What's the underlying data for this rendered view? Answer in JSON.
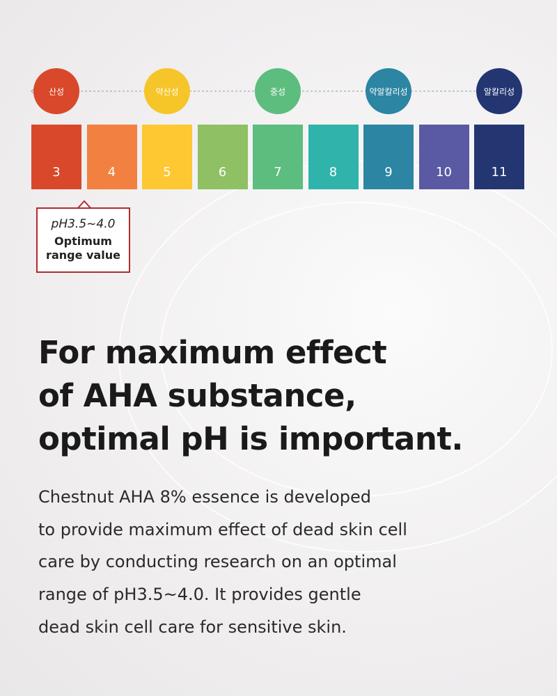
{
  "scale": {
    "zones": [
      {
        "label": "산성",
        "color": "#d9482a"
      },
      {
        "label": "약산성",
        "color": "#f6c52a"
      },
      {
        "label": "중성",
        "color": "#5cbd7f"
      },
      {
        "label": "약알칼리성",
        "color": "#2c85a2"
      },
      {
        "label": "알칼리성",
        "color": "#233672"
      }
    ],
    "cells": [
      {
        "label": "3",
        "color": "#d9482a"
      },
      {
        "label": "4",
        "color": "#f28041"
      },
      {
        "label": "5",
        "color": "#fdc831"
      },
      {
        "label": "6",
        "color": "#8fc063"
      },
      {
        "label": "7",
        "color": "#5cbd7f"
      },
      {
        "label": "8",
        "color": "#2fb3aa"
      },
      {
        "label": "9",
        "color": "#2c85a2"
      },
      {
        "label": "10",
        "color": "#5a59a3"
      },
      {
        "label": "11",
        "color": "#233672"
      }
    ]
  },
  "callout": {
    "range": "pH3.5~4.0",
    "line1": "Optimum",
    "line2": "range value"
  },
  "headline": [
    "For maximum effect",
    "of AHA substance,",
    "optimal pH is important."
  ],
  "body": [
    "Chestnut AHA 8% essence is developed",
    "to provide maximum effect of dead skin cell",
    "care by conducting research on an optimal",
    "range of pH3.5~4.0. It provides gentle",
    "dead skin cell care for sensitive skin."
  ]
}
